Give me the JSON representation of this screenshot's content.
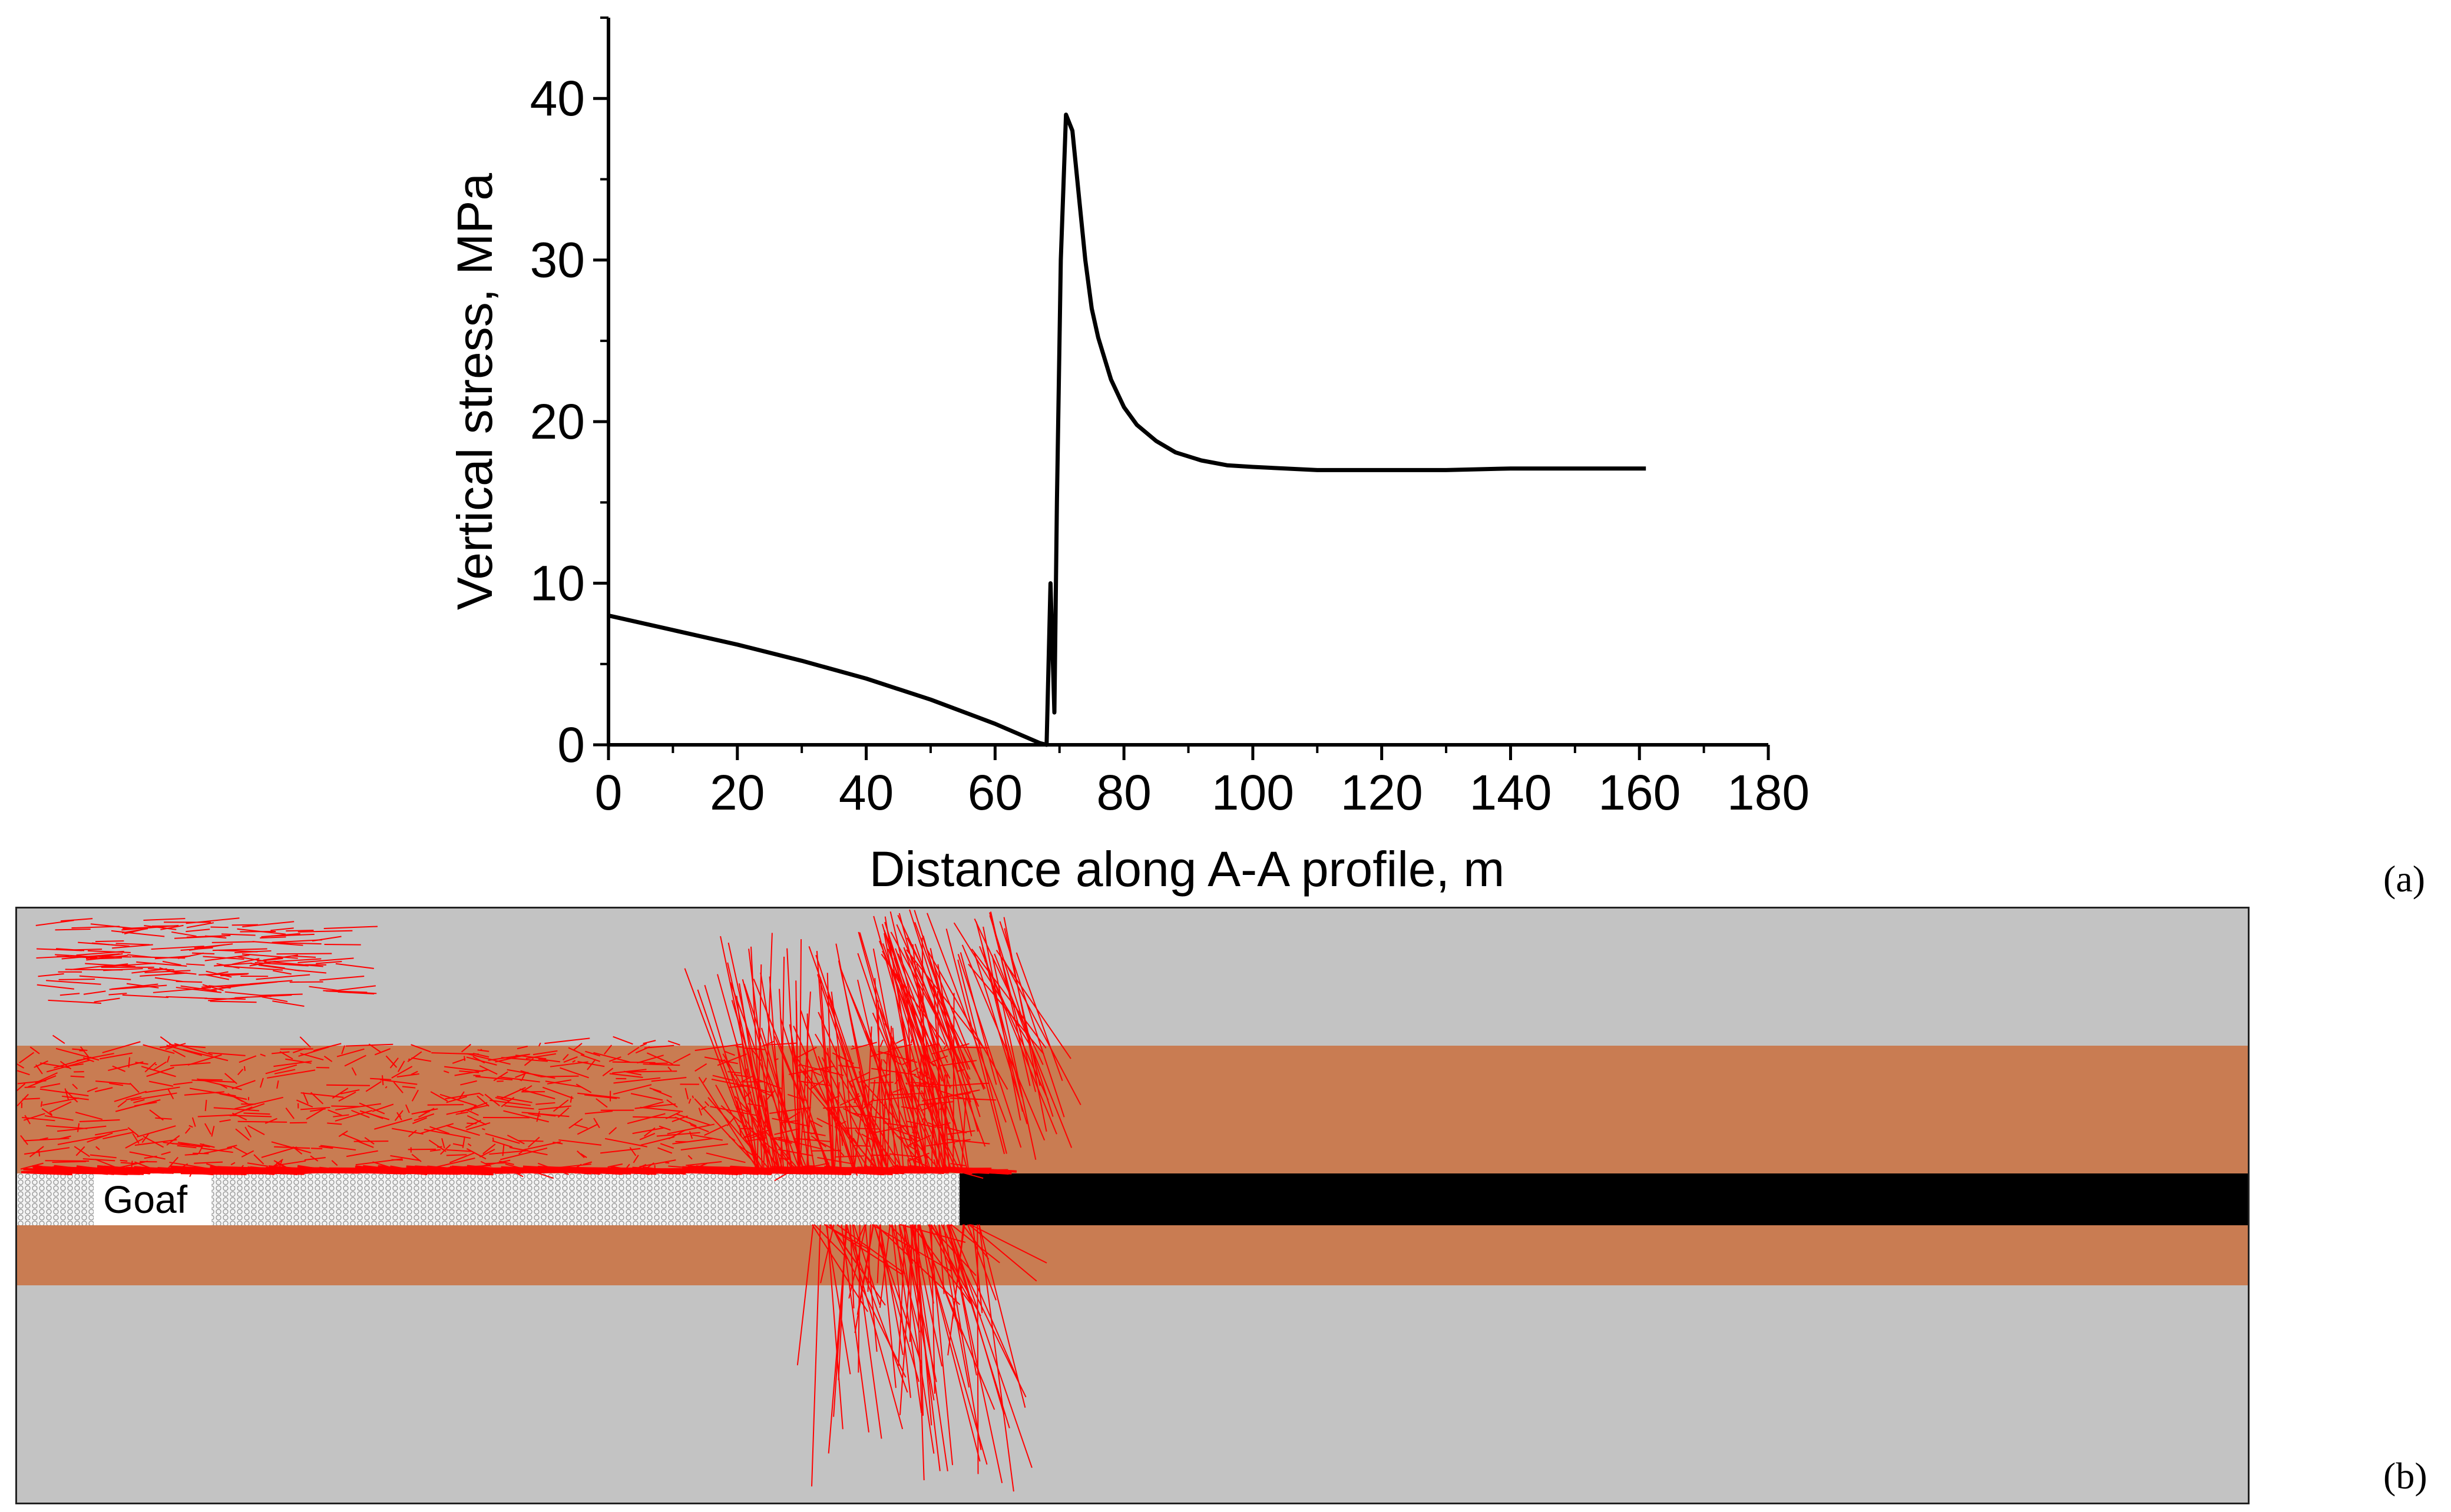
{
  "chart_data": {
    "type": "line",
    "xlabel": "Distance along A-A profile, m",
    "ylabel": "Vertical stress, MPa",
    "xlim": [
      0,
      180
    ],
    "ylim": [
      0,
      45
    ],
    "xticks": [
      0,
      20,
      40,
      60,
      80,
      100,
      120,
      140,
      160,
      180
    ],
    "yticks": [
      0,
      10,
      20,
      30,
      40
    ],
    "grid": false,
    "series": [
      {
        "color": "#000000",
        "x": [
          0,
          10,
          20,
          30,
          40,
          50,
          60,
          67,
          68,
          68.6,
          69.2,
          69.6,
          70.2,
          71,
          72,
          73,
          74,
          75,
          76,
          78,
          80,
          82,
          85,
          88,
          92,
          96,
          100,
          110,
          120,
          130,
          140,
          150,
          161
        ],
        "y": [
          8,
          7.1,
          6.2,
          5.2,
          4.1,
          2.8,
          1.3,
          0.1,
          0,
          10,
          2,
          15,
          30,
          39,
          38,
          34,
          30,
          27,
          25.2,
          22.6,
          20.9,
          19.8,
          18.8,
          18.1,
          17.6,
          17.3,
          17.2,
          17.0,
          17.0,
          17.0,
          17.1,
          17.1,
          17.1
        ]
      }
    ]
  },
  "panels": {
    "a_label": "(a)",
    "b_label": "(b)"
  },
  "simulation": {
    "goaf_label": "Goaf",
    "colors": {
      "background": "#c3c3c3",
      "strata": "#c97c52",
      "coal_seam": "#000000",
      "fractures": "#ff0000"
    }
  }
}
